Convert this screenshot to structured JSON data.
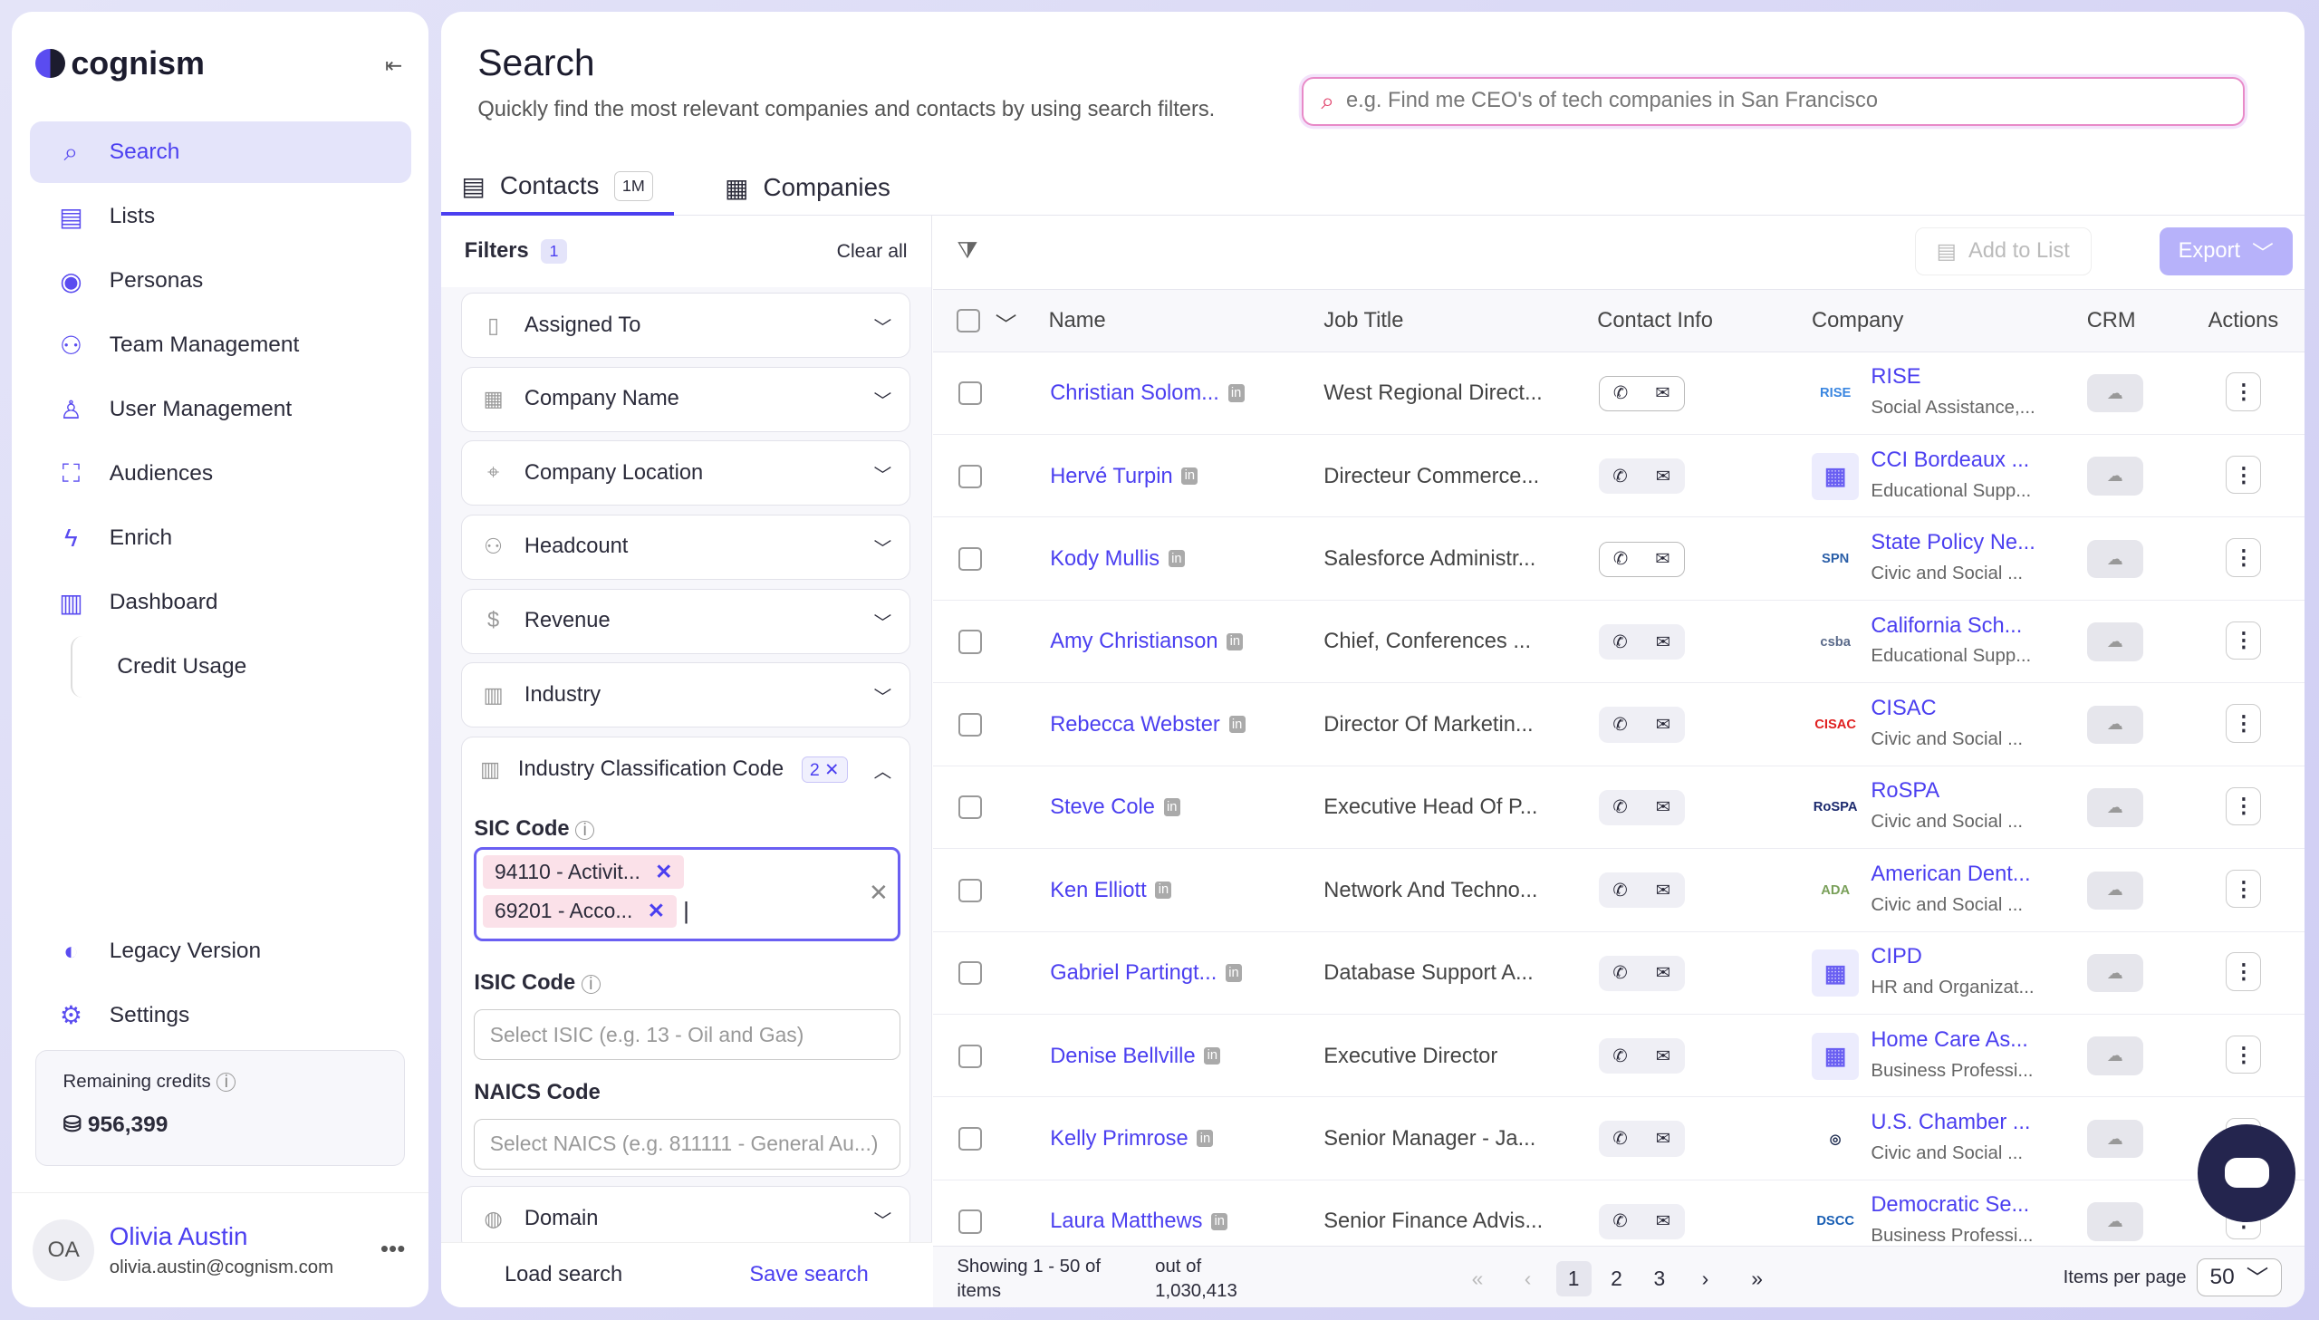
{
  "brand": "cognism",
  "sidebar": {
    "items": [
      {
        "label": "Search",
        "icon": "search-icon",
        "active": true
      },
      {
        "label": "Lists",
        "icon": "list-icon"
      },
      {
        "label": "Personas",
        "icon": "persona-icon"
      },
      {
        "label": "Team Management",
        "icon": "team-icon"
      },
      {
        "label": "User Management",
        "icon": "user-icon"
      },
      {
        "label": "Audiences",
        "icon": "audience-icon"
      },
      {
        "label": "Enrich",
        "icon": "bolt-icon"
      },
      {
        "label": "Dashboard",
        "icon": "chart-icon"
      },
      {
        "label": "Credit Usage"
      }
    ],
    "bottom": [
      {
        "label": "Legacy Version",
        "icon": "toggle-icon"
      },
      {
        "label": "Settings",
        "icon": "gear-icon"
      }
    ],
    "credits_label": "Remaining credits",
    "credits_value": "956,399",
    "user": {
      "initials": "OA",
      "name": "Olivia Austin",
      "email": "olivia.austin@cognism.com"
    }
  },
  "header": {
    "title": "Search",
    "subtitle": "Quickly find the most relevant companies and contacts by using search filters.",
    "search_placeholder": "e.g. Find me CEO's of tech companies in San Francisco"
  },
  "tabs": [
    {
      "label": "Contacts",
      "badge": "1M",
      "active": true
    },
    {
      "label": "Companies"
    }
  ],
  "filters": {
    "title": "Filters",
    "count": "1",
    "clear": "Clear all",
    "items": [
      "Assigned To",
      "Company Name",
      "Company Location",
      "Headcount",
      "Revenue",
      "Industry"
    ],
    "expanded": {
      "label": "Industry Classification Code",
      "count": "2",
      "sic_label": "SIC Code",
      "sic_tags": [
        "94110 - Activit...",
        "69201 - Acco..."
      ],
      "isic_label": "ISIC Code",
      "isic_placeholder": "Select ISIC (e.g. 13 - Oil and Gas)",
      "naics_label": "NAICS Code",
      "naics_placeholder": "Select NAICS (e.g. 811111 - General Au...)"
    },
    "domain": "Domain",
    "load": "Load search",
    "save": "Save search"
  },
  "toolbar": {
    "add_to_list": "Add to List",
    "export": "Export"
  },
  "table": {
    "columns": [
      "Name",
      "Job Title",
      "Contact Info",
      "Company",
      "CRM",
      "Actions"
    ],
    "rows": [
      {
        "name": "Christian Solom...",
        "job": "West Regional Direct...",
        "company": "RISE",
        "industry": "Social Assistance,...",
        "logo": "RISE",
        "logo_color": "#3a86e0",
        "contact_border": true
      },
      {
        "name": "Hervé Turpin",
        "job": "Directeur Commerce...",
        "company": "CCI Bordeaux ...",
        "industry": "Educational Supp...",
        "logo": "▦",
        "logo_color": "#6a5ff2"
      },
      {
        "name": "Kody Mullis",
        "job": "Salesforce Administr...",
        "company": "State Policy Ne...",
        "industry": "Civic and Social ...",
        "logo": "SPN",
        "logo_color": "#2b5fa8",
        "contact_border": true
      },
      {
        "name": "Amy Christianson",
        "job": "Chief, Conferences ...",
        "company": "California Sch...",
        "industry": "Educational Supp...",
        "logo": "csba",
        "logo_color": "#5a6a8a"
      },
      {
        "name": "Rebecca Webster",
        "job": "Director Of Marketin...",
        "company": "CISAC",
        "industry": "Civic and Social ...",
        "logo": "CISAC",
        "logo_color": "#e02020"
      },
      {
        "name": "Steve Cole",
        "job": "Executive Head Of P...",
        "company": "RoSPA",
        "industry": "Civic and Social ...",
        "logo": "RoSPA",
        "logo_color": "#1c2a6e"
      },
      {
        "name": "Ken Elliott",
        "job": "Network And Techno...",
        "company": "American Dent...",
        "industry": "Civic and Social ...",
        "logo": "ADA",
        "logo_color": "#7aa05a"
      },
      {
        "name": "Gabriel Partingt...",
        "job": "Database Support A...",
        "company": "CIPD",
        "industry": "HR and Organizat...",
        "logo": "▦",
        "logo_color": "#6a5ff2"
      },
      {
        "name": "Denise Bellville",
        "job": "Executive Director",
        "company": "Home Care As...",
        "industry": "Business Professi...",
        "logo": "▦",
        "logo_color": "#6a5ff2"
      },
      {
        "name": "Kelly Primrose",
        "job": "Senior Manager - Ja...",
        "company": "U.S. Chamber ...",
        "industry": "Civic and Social ...",
        "logo": "◎",
        "logo_color": "#1c2a4e"
      },
      {
        "name": "Laura Matthews",
        "job": "Senior Finance Advis...",
        "company": "Democratic Se...",
        "industry": "Business Professi...",
        "logo": "DSCC",
        "logo_color": "#1a5fb4"
      }
    ]
  },
  "pagination": {
    "showing": "Showing 1 - 50 of items",
    "out_of": "out of 1,030,413",
    "pages": [
      "1",
      "2",
      "3"
    ],
    "current": "1",
    "items_per_page_label": "Items per page",
    "items_per_page": "50"
  },
  "colors": {
    "accent": "#4b3ff0",
    "export": "#b7b2fa",
    "chat": "#24254e"
  }
}
